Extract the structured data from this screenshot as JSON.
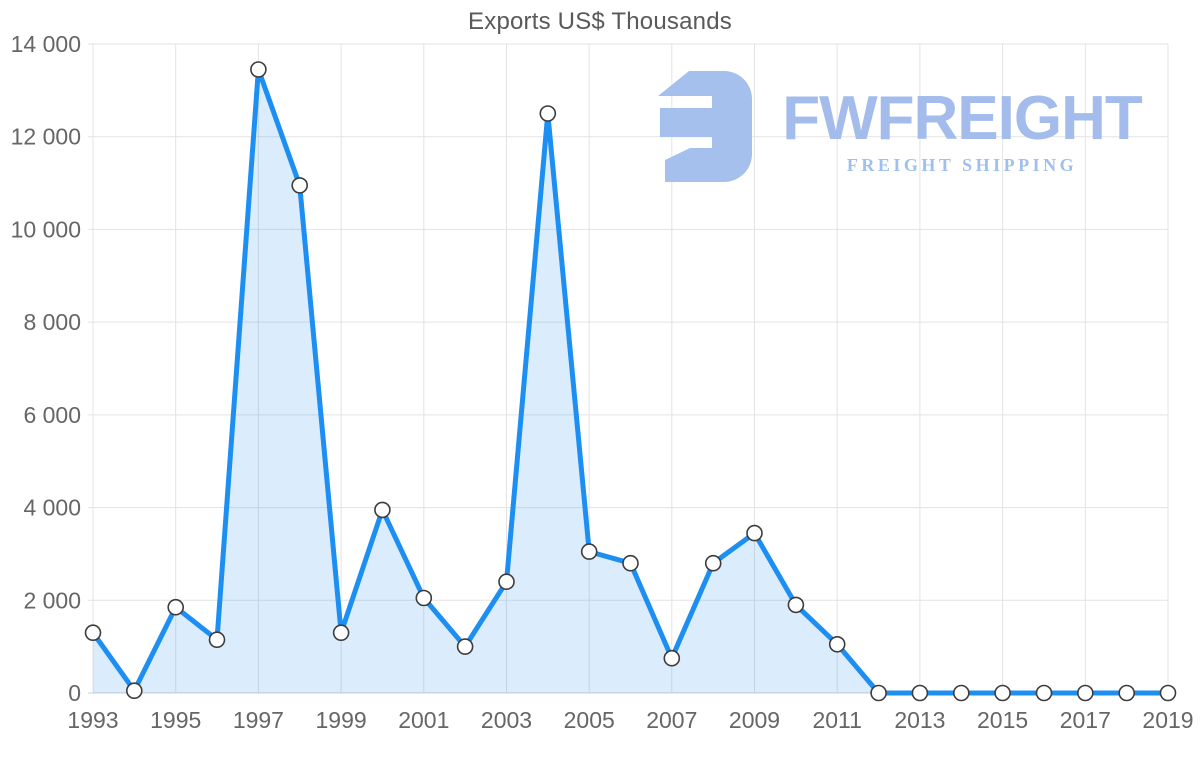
{
  "page": {
    "background_color": "#ffffff"
  },
  "chart_data": {
    "type": "area",
    "title": "Exports US$ Thousands",
    "x": [
      1993,
      1994,
      1995,
      1996,
      1997,
      1998,
      1999,
      2000,
      2001,
      2002,
      2003,
      2004,
      2005,
      2006,
      2007,
      2008,
      2009,
      2010,
      2011,
      2012,
      2013,
      2014,
      2015,
      2016,
      2017,
      2018,
      2019
    ],
    "values": [
      1300,
      50,
      1850,
      1150,
      13450,
      10950,
      1300,
      3950,
      2050,
      1000,
      2400,
      12500,
      3050,
      2800,
      750,
      2800,
      3450,
      1900,
      1050,
      0,
      0,
      0,
      0,
      0,
      0,
      0,
      0
    ],
    "series_name": "Exports US$ Thousands",
    "xlabel": "",
    "ylabel": "",
    "ylim": [
      0,
      14000
    ],
    "y_ticks": [
      0,
      2000,
      4000,
      6000,
      8000,
      10000,
      12000,
      14000
    ],
    "x_tick_years": [
      1993,
      1995,
      1997,
      1999,
      2001,
      2003,
      2005,
      2007,
      2009,
      2011,
      2013,
      2015,
      2017,
      2019
    ],
    "grid": true,
    "legend": "none",
    "line_color": "#1e8ff2",
    "fill_color": "rgba(30,143,242,0.16)",
    "marker_fill": "#ffffff",
    "marker_stroke": "#3c3c3c",
    "grid_color": "#e3e3e3",
    "axis_line_color": "#cfcfcf",
    "axis_label_color": "#666666",
    "title_color": "#595959"
  },
  "watermark": {
    "brand": "FWFREIGHT",
    "tagline": "FREIGHT SHIPPING",
    "icon_name": "fwfreight-logo-icon",
    "icon_color": "#a6c0ee",
    "brand_color": "#a3bcec",
    "tagline_color": "#9fc0ee"
  }
}
